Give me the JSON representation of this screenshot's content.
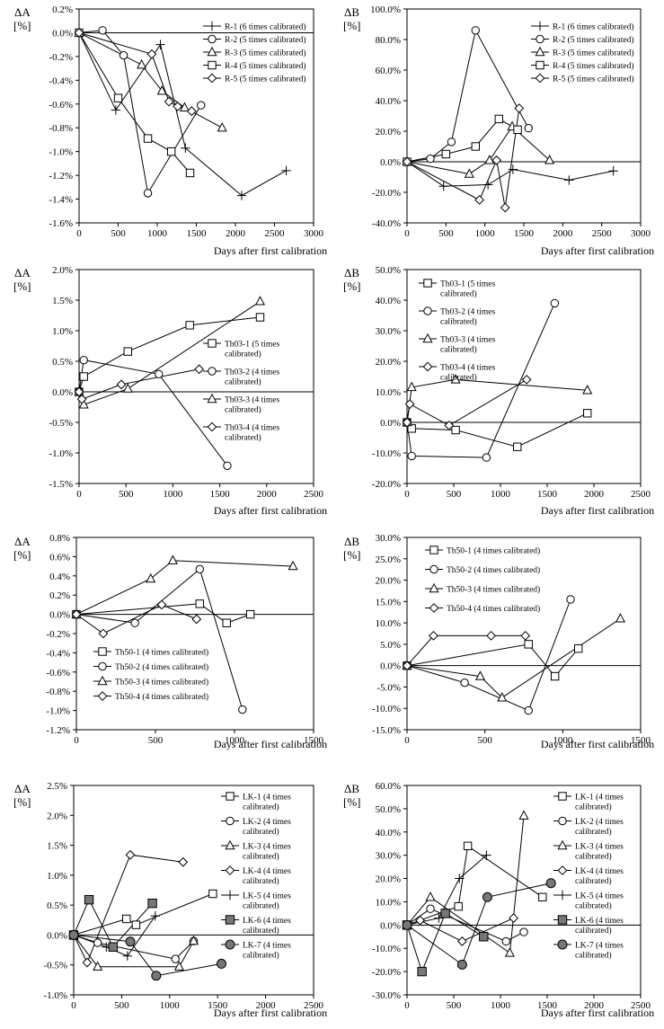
{
  "chart_data": [
    {
      "type": "line",
      "id": "p1",
      "ylabel_symbol": "ΔA",
      "ylabel_unit": "[%]",
      "xlabel": "Days after first calibration",
      "xlim": [
        0,
        3000
      ],
      "xticks": [
        "0",
        "500",
        "1000",
        "1500",
        "2000",
        "2500",
        "3000"
      ],
      "ylim": [
        -1.6,
        0.2
      ],
      "yticks": [
        "0.2%",
        "0.0%",
        "-0.2%",
        "-0.4%",
        "-0.6%",
        "-0.8%",
        "-1.0%",
        "-1.2%",
        "-1.4%",
        "-1.6%"
      ],
      "legend_position": "top-right",
      "series": [
        {
          "name": "R-1 (6 times calibrated)",
          "marker": "plus",
          "x": [
            0,
            470,
            1040,
            1360,
            2080,
            2650
          ],
          "y": [
            0,
            -0.65,
            -0.1,
            -0.97,
            -1.37,
            -1.16
          ]
        },
        {
          "name": "R-2 (5 times calibrated)",
          "marker": "circle",
          "x": [
            0,
            300,
            570,
            880,
            1560
          ],
          "y": [
            0,
            0.02,
            -0.19,
            -1.35,
            -0.61
          ]
        },
        {
          "name": "R-3 (5 times calibrated)",
          "marker": "triangle",
          "x": [
            0,
            800,
            1060,
            1350,
            1830
          ],
          "y": [
            0,
            -0.27,
            -0.49,
            -0.63,
            -0.8
          ]
        },
        {
          "name": "R-4 (5 times calibrated)",
          "marker": "square",
          "x": [
            0,
            500,
            880,
            1180,
            1420
          ],
          "y": [
            0,
            -0.55,
            -0.89,
            -1.0,
            -1.18
          ]
        },
        {
          "name": "R-5 (5 times calibrated)",
          "marker": "diamond",
          "x": [
            0,
            930,
            1150,
            1260,
            1440
          ],
          "y": [
            0,
            -0.18,
            -0.58,
            -0.62,
            -0.66
          ]
        }
      ]
    },
    {
      "type": "line",
      "id": "p2",
      "ylabel_symbol": "ΔB",
      "ylabel_unit": "[%]",
      "xlabel": "Days after first calibration",
      "xlim": [
        0,
        3000
      ],
      "xticks": [
        "0",
        "500",
        "1000",
        "1500",
        "2000",
        "2500",
        "3000"
      ],
      "ylim": [
        -40,
        100
      ],
      "yticks": [
        "100.0%",
        "80.0%",
        "60.0%",
        "40.0%",
        "20.0%",
        "0.0%",
        "-20.0%",
        "-40.0%"
      ],
      "legend_position": "top-right",
      "series": [
        {
          "name": "R-1 (6 times calibrated)",
          "marker": "plus",
          "x": [
            0,
            470,
            1040,
            1360,
            2080,
            2650
          ],
          "y": [
            0,
            -16,
            -15,
            -5,
            -12,
            -6
          ]
        },
        {
          "name": "R-2 (5 times calibrated)",
          "marker": "circle",
          "x": [
            0,
            300,
            570,
            880,
            1560
          ],
          "y": [
            0,
            2,
            13,
            86,
            22
          ]
        },
        {
          "name": "R-3 (5 times calibrated)",
          "marker": "triangle",
          "x": [
            0,
            800,
            1060,
            1350,
            1830
          ],
          "y": [
            0,
            -8,
            1,
            23,
            1
          ]
        },
        {
          "name": "R-4 (5 times calibrated)",
          "marker": "square",
          "x": [
            0,
            500,
            880,
            1180,
            1420
          ],
          "y": [
            0,
            5,
            10,
            28,
            21
          ]
        },
        {
          "name": "R-5 (5 times calibrated)",
          "marker": "diamond",
          "x": [
            0,
            930,
            1150,
            1260,
            1440
          ],
          "y": [
            0,
            -25,
            1,
            -30,
            35
          ]
        }
      ]
    },
    {
      "type": "line",
      "id": "p3",
      "ylabel_symbol": "ΔA",
      "ylabel_unit": "[%]",
      "xlabel": "Days after first calibration",
      "xlim": [
        0,
        2500
      ],
      "xticks": [
        "0",
        "500",
        "1000",
        "1500",
        "2000",
        "2500"
      ],
      "ylim": [
        -1.5,
        2.0
      ],
      "yticks": [
        "2.0%",
        "1.5%",
        "1.0%",
        "0.5%",
        "0.0%",
        "-0.5%",
        "-1.0%",
        "-1.5%"
      ],
      "legend_position": "right",
      "series": [
        {
          "name": "Th03-1 (5 times calibrated)",
          "marker": "square",
          "x": [
            0,
            50,
            520,
            1180,
            1930
          ],
          "y": [
            0,
            0.25,
            0.66,
            1.09,
            1.22
          ]
        },
        {
          "name": "Th03-2 (4 times calibrated)",
          "marker": "circle",
          "x": [
            0,
            50,
            850,
            1580
          ],
          "y": [
            0,
            0.52,
            0.29,
            -1.21
          ]
        },
        {
          "name": "Th03-3 (4 times calibrated)",
          "marker": "triangle",
          "x": [
            0,
            50,
            520,
            1930
          ],
          "y": [
            0,
            -0.21,
            0.05,
            1.48
          ]
        },
        {
          "name": "Th03-4 (4 times calibrated)",
          "marker": "diamond",
          "x": [
            0,
            30,
            450,
            1280
          ],
          "y": [
            0,
            -0.12,
            0.12,
            0.37
          ]
        }
      ]
    },
    {
      "type": "line",
      "id": "p4",
      "ylabel_symbol": "ΔB",
      "ylabel_unit": "[%]",
      "xlabel": "Days after first calibration",
      "xlim": [
        0,
        2500
      ],
      "xticks": [
        "0",
        "500",
        "1000",
        "1500",
        "2000",
        "2500"
      ],
      "ylim": [
        -20,
        50
      ],
      "yticks": [
        "50.0%",
        "40.0%",
        "30.0%",
        "20.0%",
        "10.0%",
        "0.0%",
        "-10.0%",
        "-20.0%"
      ],
      "legend_position": "top-left",
      "series": [
        {
          "name": "Th03-1 (5 times calibrated)",
          "marker": "square",
          "x": [
            0,
            50,
            520,
            1180,
            1930
          ],
          "y": [
            0,
            -2,
            -2.5,
            -8,
            3
          ]
        },
        {
          "name": "Th03-2 (4 times calibrated)",
          "marker": "circle",
          "x": [
            0,
            50,
            850,
            1580
          ],
          "y": [
            0,
            -11,
            -11.5,
            39
          ]
        },
        {
          "name": "Th03-3 (4 times calibrated)",
          "marker": "triangle",
          "x": [
            0,
            50,
            520,
            1930
          ],
          "y": [
            0,
            11.5,
            14,
            10.5
          ]
        },
        {
          "name": "Th03-4 (4 times calibrated)",
          "marker": "diamond",
          "x": [
            0,
            30,
            450,
            1280
          ],
          "y": [
            0,
            6,
            -1,
            14
          ]
        }
      ]
    },
    {
      "type": "line",
      "id": "p5",
      "ylabel_symbol": "ΔA",
      "ylabel_unit": "[%]",
      "xlabel": "Days after first calibration",
      "xlim": [
        0,
        1500
      ],
      "xticks": [
        "0",
        "500",
        "1000",
        "1500"
      ],
      "ylim": [
        -1.2,
        0.8
      ],
      "yticks": [
        "0.8%",
        "0.6%",
        "0.4%",
        "0.2%",
        "0.0%",
        "-0.2%",
        "-0.4%",
        "-0.6%",
        "-0.8%",
        "-1.0%",
        "-1.2%"
      ],
      "legend_position": "bottom-left",
      "series": [
        {
          "name": "Th50-1 (4 times calibrated)",
          "marker": "square",
          "x": [
            0,
            780,
            950,
            1100
          ],
          "y": [
            0,
            0.11,
            -0.09,
            0.0
          ]
        },
        {
          "name": "Th50-2 (4 times calibrated)",
          "marker": "circle",
          "x": [
            0,
            370,
            780,
            1050
          ],
          "y": [
            0,
            -0.09,
            0.47,
            -0.99
          ]
        },
        {
          "name": "Th50-3 (4 times calibrated)",
          "marker": "triangle",
          "x": [
            0,
            470,
            610,
            1370
          ],
          "y": [
            0,
            0.37,
            0.56,
            0.5
          ]
        },
        {
          "name": "Th50-4 (4 times calibrated)",
          "marker": "diamond",
          "x": [
            0,
            170,
            540,
            760
          ],
          "y": [
            0,
            -0.2,
            0.1,
            -0.05
          ]
        }
      ]
    },
    {
      "type": "line",
      "id": "p6",
      "ylabel_symbol": "ΔB",
      "ylabel_unit": "[%]",
      "xlabel": "Days after first calibration",
      "xlim": [
        0,
        1500
      ],
      "xticks": [
        "0",
        "500",
        "1000",
        "1500"
      ],
      "ylim": [
        -15,
        30
      ],
      "yticks": [
        "30.0%",
        "25.0%",
        "20.0%",
        "15.0%",
        "10.0%",
        "5.0%",
        "0.0%",
        "-5.0%",
        "-10.0%",
        "-15.0%"
      ],
      "legend_position": "top-left",
      "series": [
        {
          "name": "Th50-1 (4 times calibrated)",
          "marker": "square",
          "x": [
            0,
            780,
            950,
            1100
          ],
          "y": [
            0,
            5,
            -2.5,
            4
          ]
        },
        {
          "name": "Th50-2 (4 times calibrated)",
          "marker": "circle",
          "x": [
            0,
            370,
            780,
            1050
          ],
          "y": [
            0,
            -4,
            -10.5,
            15.5
          ]
        },
        {
          "name": "Th50-3 (4 times calibrated)",
          "marker": "triangle",
          "x": [
            0,
            470,
            610,
            1370
          ],
          "y": [
            0,
            -2.5,
            -7.5,
            11
          ]
        },
        {
          "name": "Th50-4 (4 times calibrated)",
          "marker": "diamond",
          "x": [
            0,
            170,
            540,
            760
          ],
          "y": [
            0,
            7,
            7,
            7
          ]
        }
      ]
    },
    {
      "type": "line",
      "id": "p7",
      "ylabel_symbol": "ΔA",
      "ylabel_unit": "[%]",
      "xlabel": "Days after first calibration",
      "xlim": [
        0,
        2500
      ],
      "xticks": [
        "0",
        "500",
        "1000",
        "1500",
        "2000",
        "2500"
      ],
      "ylim": [
        -1.0,
        2.5
      ],
      "yticks": [
        "2.5%",
        "2.0%",
        "1.5%",
        "1.0%",
        "0.5%",
        "0.0%",
        "-0.5%",
        "-1.0%"
      ],
      "legend_position": "right",
      "series": [
        {
          "name": "LK-1 (4 times calibrated)",
          "marker": "square",
          "x": [
            0,
            550,
            650,
            1450
          ],
          "y": [
            0,
            0.27,
            0.17,
            0.69
          ]
        },
        {
          "name": "LK-2 (4 times calibrated)",
          "marker": "circle",
          "x": [
            0,
            250,
            1060,
            1250
          ],
          "y": [
            0,
            -0.13,
            -0.4,
            -0.1
          ]
        },
        {
          "name": "LK-3 (4 times calibrated)",
          "marker": "triangle",
          "x": [
            0,
            250,
            1100,
            1250
          ],
          "y": [
            0,
            -0.53,
            -0.53,
            -0.1
          ]
        },
        {
          "name": "LK-4 (4 times calibrated)",
          "marker": "diamond",
          "x": [
            0,
            140,
            590,
            1140
          ],
          "y": [
            0,
            -0.46,
            1.34,
            1.22
          ]
        },
        {
          "name": "LK-5 (4 times calibrated)",
          "marker": "plus",
          "x": [
            0,
            340,
            560,
            850
          ],
          "y": [
            0,
            -0.2,
            -0.35,
            0.32
          ]
        },
        {
          "name": "LK-6 (4 times calibrated)",
          "marker": "filled-square",
          "x": [
            0,
            160,
            410,
            820
          ],
          "y": [
            0,
            0.59,
            -0.2,
            0.53
          ]
        },
        {
          "name": "LK-7 (4 times calibrated)",
          "marker": "filled-circle",
          "x": [
            0,
            590,
            860,
            1540
          ],
          "y": [
            0,
            -0.11,
            -0.68,
            -0.48
          ]
        }
      ]
    },
    {
      "type": "line",
      "id": "p8",
      "ylabel_symbol": "ΔB",
      "ylabel_unit": "[%]",
      "xlabel": "Days after first calibration",
      "xlim": [
        0,
        2500
      ],
      "xticks": [
        "0",
        "500",
        "1000",
        "1500",
        "2000",
        "2500"
      ],
      "ylim": [
        -30,
        60
      ],
      "yticks": [
        "60.0%",
        "50.0%",
        "40.0%",
        "30.0%",
        "20.0%",
        "10.0%",
        "0.0%",
        "-10.0%",
        "-20.0%",
        "-30.0%"
      ],
      "legend_position": "top-right",
      "series": [
        {
          "name": "LK-1 (4 times calibrated)",
          "marker": "square",
          "x": [
            0,
            550,
            650,
            1450
          ],
          "y": [
            0,
            8,
            34,
            12
          ]
        },
        {
          "name": "LK-2 (4 times calibrated)",
          "marker": "circle",
          "x": [
            0,
            250,
            1060,
            1250
          ],
          "y": [
            0,
            7,
            -7,
            -3
          ]
        },
        {
          "name": "LK-3 (4 times calibrated)",
          "marker": "triangle",
          "x": [
            0,
            250,
            1100,
            1250
          ],
          "y": [
            0,
            12,
            -12,
            47
          ]
        },
        {
          "name": "LK-4 (4 times calibrated)",
          "marker": "diamond",
          "x": [
            0,
            140,
            590,
            1140
          ],
          "y": [
            0,
            2,
            -7,
            3
          ]
        },
        {
          "name": "LK-5 (4 times calibrated)",
          "marker": "plus",
          "x": [
            0,
            340,
            560,
            850
          ],
          "y": [
            0,
            3,
            20,
            30
          ]
        },
        {
          "name": "LK-6 (4 times calibrated)",
          "marker": "filled-square",
          "x": [
            0,
            160,
            410,
            820
          ],
          "y": [
            0,
            -20,
            5,
            -5
          ]
        },
        {
          "name": "LK-7 (4 times calibrated)",
          "marker": "filled-circle",
          "x": [
            0,
            590,
            860,
            1540
          ],
          "y": [
            0,
            -17,
            12,
            18
          ]
        }
      ]
    }
  ]
}
